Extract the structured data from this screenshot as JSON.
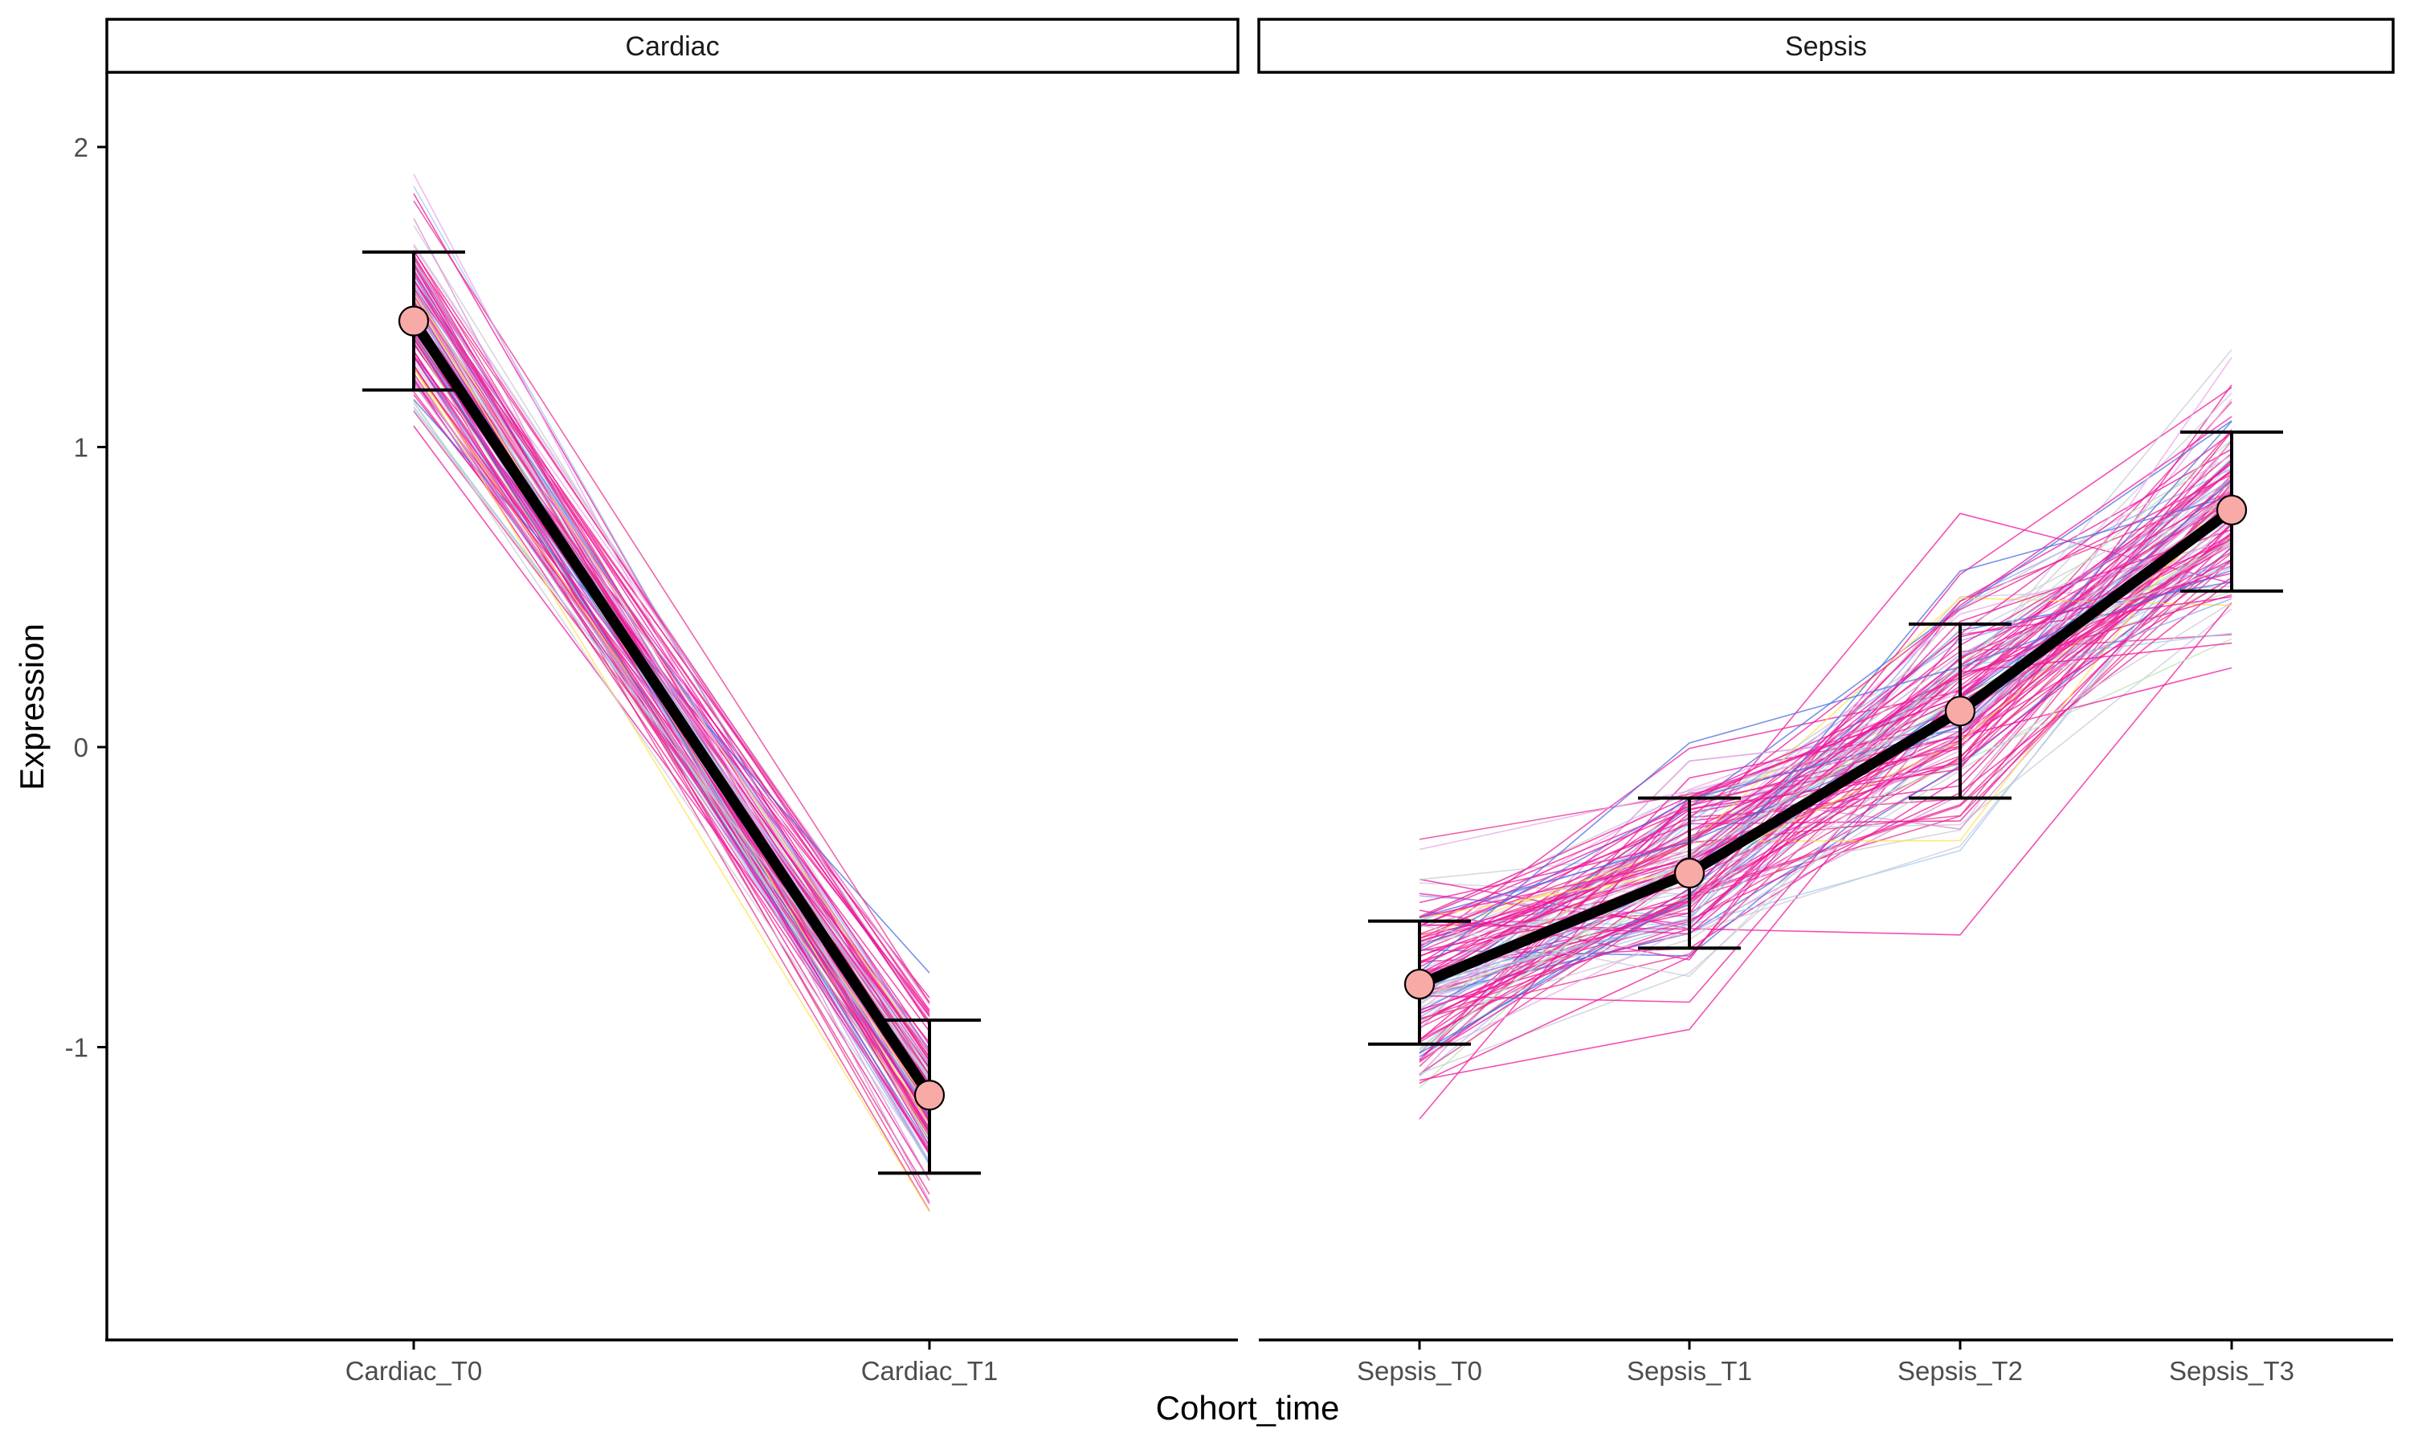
{
  "chart_data": {
    "type": "line",
    "xlabel": "Cohort_time",
    "ylabel": "Expression",
    "ylim": [
      -2.0,
      2.25
    ],
    "yticks": [
      "-1",
      "0",
      "1",
      "2"
    ],
    "ytick_values": [
      -1,
      0,
      1,
      2
    ],
    "grid": false,
    "legend": "none",
    "summary_line_color": "#000000",
    "summary_point_color": "#f8aaa6",
    "individual_line_colors": [
      "#f0149b",
      "#e8308e",
      "#4a6ee0",
      "#9ecbf0",
      "#c9c9d6",
      "#e9a6e9",
      "#b7e6b0",
      "#ffe14d",
      "#d58cd3",
      "#8fa6f0"
    ],
    "panels": [
      {
        "strip": "Cardiac",
        "categories": [
          "Cardiac_T0",
          "Cardiac_T1"
        ],
        "mean": [
          1.42,
          -1.16
        ],
        "error_lower": [
          1.19,
          -1.42
        ],
        "error_upper": [
          1.65,
          -0.91
        ],
        "individual_spread": [
          0.17,
          0.16
        ]
      },
      {
        "strip": "Sepsis",
        "categories": [
          "Sepsis_T0",
          "Sepsis_T1",
          "Sepsis_T2",
          "Sepsis_T3"
        ],
        "mean": [
          -0.79,
          -0.42,
          0.12,
          0.79
        ],
        "error_lower": [
          -0.99,
          -0.67,
          -0.17,
          0.52
        ],
        "error_upper": [
          -0.58,
          -0.17,
          0.41,
          1.05
        ],
        "individual_spread": [
          0.15,
          0.18,
          0.22,
          0.2
        ]
      }
    ]
  }
}
